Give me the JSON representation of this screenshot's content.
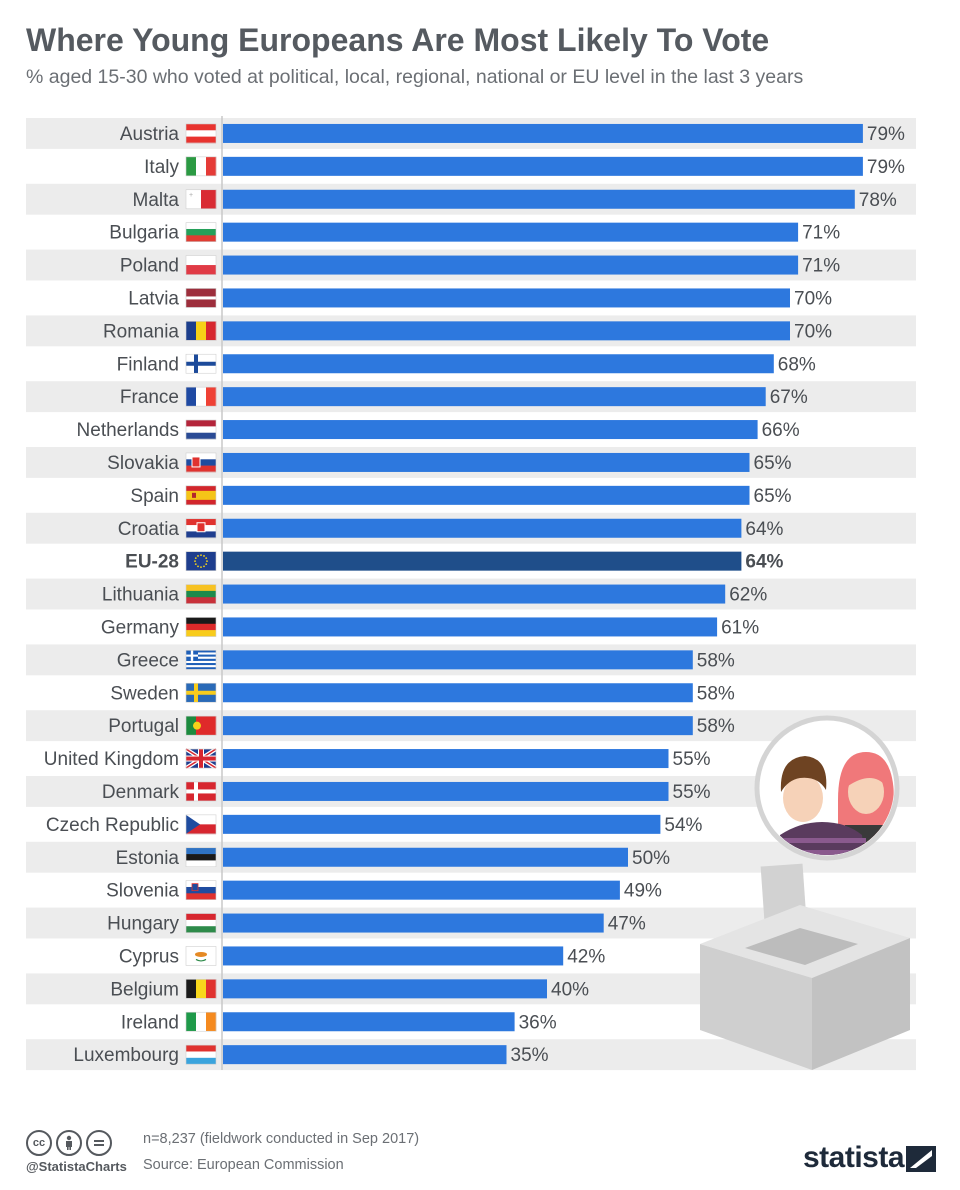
{
  "title": "Where Young Europeans Are Most Likely To Vote",
  "subtitle": "% aged 15-30 who voted at political, local, regional, national or EU level in the last 3 years",
  "chart_data": {
    "type": "bar",
    "orientation": "horizontal",
    "title": "Where Young Europeans Are Most Likely To Vote",
    "subtitle": "% aged 15-30 who voted at political, local, regional, national or EU level in the last 3 years",
    "value_suffix": "%",
    "xlim": [
      0,
      100
    ],
    "grid": false,
    "categories": [
      "Austria",
      "Italy",
      "Malta",
      "Bulgaria",
      "Poland",
      "Latvia",
      "Romania",
      "Finland",
      "France",
      "Netherlands",
      "Slovakia",
      "Spain",
      "Croatia",
      "EU-28",
      "Lithuania",
      "Germany",
      "Greece",
      "Sweden",
      "Portugal",
      "United Kingdom",
      "Denmark",
      "Czech Republic",
      "Estonia",
      "Slovenia",
      "Hungary",
      "Cyprus",
      "Belgium",
      "Ireland",
      "Luxembourg"
    ],
    "values": [
      79,
      79,
      78,
      71,
      71,
      70,
      70,
      68,
      67,
      66,
      65,
      65,
      64,
      64,
      62,
      61,
      58,
      58,
      58,
      55,
      55,
      54,
      50,
      49,
      47,
      42,
      40,
      36,
      35
    ],
    "highlight": "EU-28",
    "colors": {
      "bar": "#2d78de",
      "highlight_bar": "#1f4e8a",
      "row_stripe": "#ececec",
      "label": "#4a4e53"
    }
  },
  "footer": {
    "note": "n=8,237 (fieldwork conducted in Sep 2017)",
    "source": "Source: European Commission",
    "handle": "@StatistaCharts",
    "brand": "statista",
    "license_icons": [
      "cc-icon",
      "attribution-icon",
      "no-derivatives-icon"
    ]
  }
}
